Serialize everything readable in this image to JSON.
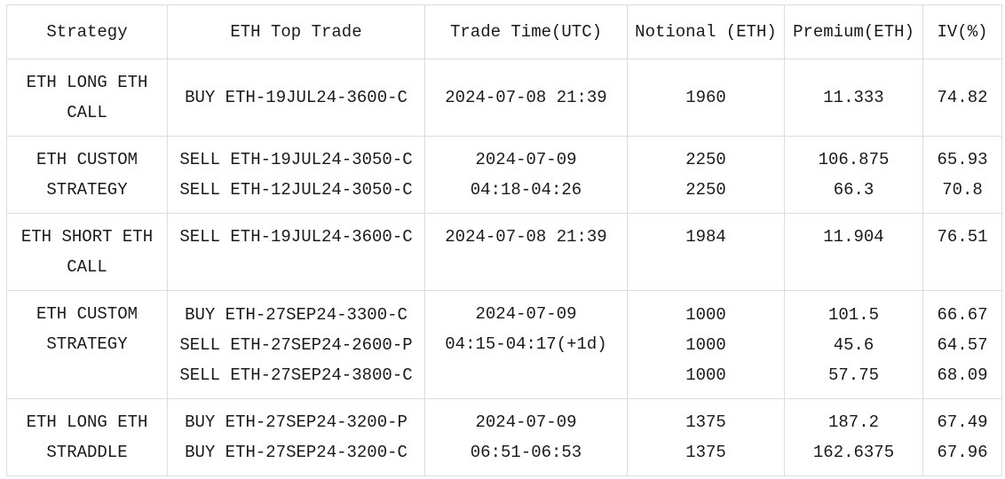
{
  "headers": [
    "Strategy",
    "ETH Top Trade",
    "Trade Time(UTC)",
    "Notional (ETH)",
    "Premium(ETH)",
    "IV(%)"
  ],
  "rows": [
    {
      "strategy": [
        "ETH LONG ETH",
        "CALL"
      ],
      "trades": [
        "BUY ETH-19JUL24-3600-C"
      ],
      "time": [
        "2024-07-08 21:39"
      ],
      "notional": [
        "1960"
      ],
      "premium": [
        "11.333"
      ],
      "iv": [
        "74.82"
      ]
    },
    {
      "strategy": [
        "ETH CUSTOM",
        "STRATEGY"
      ],
      "trades": [
        "SELL ETH-19JUL24-3050-C",
        "SELL ETH-12JUL24-3050-C"
      ],
      "time": [
        "2024-07-09",
        "04:18-04:26"
      ],
      "notional": [
        "2250",
        "2250"
      ],
      "premium": [
        "106.875",
        "66.3"
      ],
      "iv": [
        "65.93",
        "70.8"
      ]
    },
    {
      "strategy": [
        "ETH SHORT ETH",
        "CALL"
      ],
      "trades": [
        "SELL ETH-19JUL24-3600-C"
      ],
      "time": [
        "2024-07-08 21:39"
      ],
      "notional": [
        "1984"
      ],
      "premium": [
        "11.904"
      ],
      "iv": [
        "76.51"
      ]
    },
    {
      "strategy": [
        "ETH CUSTOM",
        "STRATEGY"
      ],
      "trades": [
        "BUY ETH-27SEP24-3300-C",
        "SELL ETH-27SEP24-2600-P",
        "SELL ETH-27SEP24-3800-C"
      ],
      "time": [
        "2024-07-09",
        "04:15-04:17(+1d)"
      ],
      "notional": [
        "1000",
        "1000",
        "1000"
      ],
      "premium": [
        "101.5",
        "45.6",
        "57.75"
      ],
      "iv": [
        "66.67",
        "64.57",
        "68.09"
      ]
    },
    {
      "strategy": [
        "ETH LONG ETH",
        "STRADDLE"
      ],
      "trades": [
        "BUY ETH-27SEP24-3200-P",
        "BUY ETH-27SEP24-3200-C"
      ],
      "time": [
        "2024-07-09",
        "06:51-06:53"
      ],
      "notional": [
        "1375",
        "1375"
      ],
      "premium": [
        "187.2",
        "162.6375"
      ],
      "iv": [
        "67.49",
        "67.96"
      ]
    }
  ]
}
